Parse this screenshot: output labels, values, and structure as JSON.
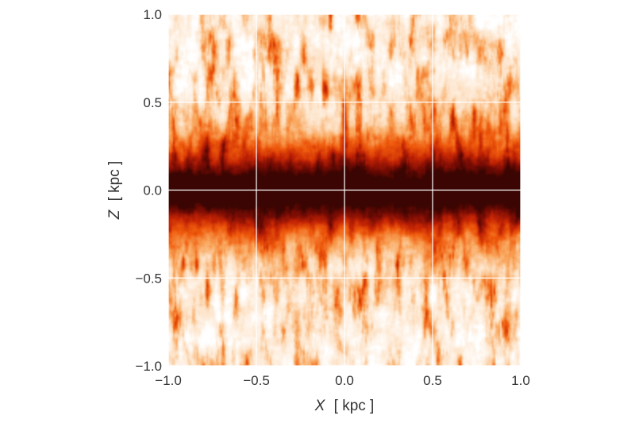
{
  "chart_data": {
    "type": "heatmap",
    "title": "",
    "xlabel_var": "X",
    "xlabel_unit": "[ kpc ]",
    "ylabel_var": "Z",
    "ylabel_unit": "[ kpc ]",
    "xlim": [
      -1.0,
      1.0
    ],
    "ylim": [
      -1.0,
      1.0
    ],
    "xticks": [
      -1.0,
      -0.5,
      0.0,
      0.5,
      1.0
    ],
    "yticks": [
      -1.0,
      -0.5,
      0.0,
      0.5,
      1.0
    ],
    "xtick_labels": [
      "−1.0",
      "−0.5",
      "0.0",
      "0.5",
      "1.0"
    ],
    "ytick_labels": [
      "−1.0",
      "−0.5",
      "0.0",
      "0.5",
      "1.0"
    ],
    "grid": true,
    "grid_color": "#ffffff",
    "colormap": "gist_heat_r",
    "colormap_stops": [
      "#ffffff",
      "#fde3c8",
      "#f9a65c",
      "#ef5a0c",
      "#c42404",
      "#7a0c04",
      "#3a0502"
    ],
    "colorbar": false,
    "legend": false
  }
}
